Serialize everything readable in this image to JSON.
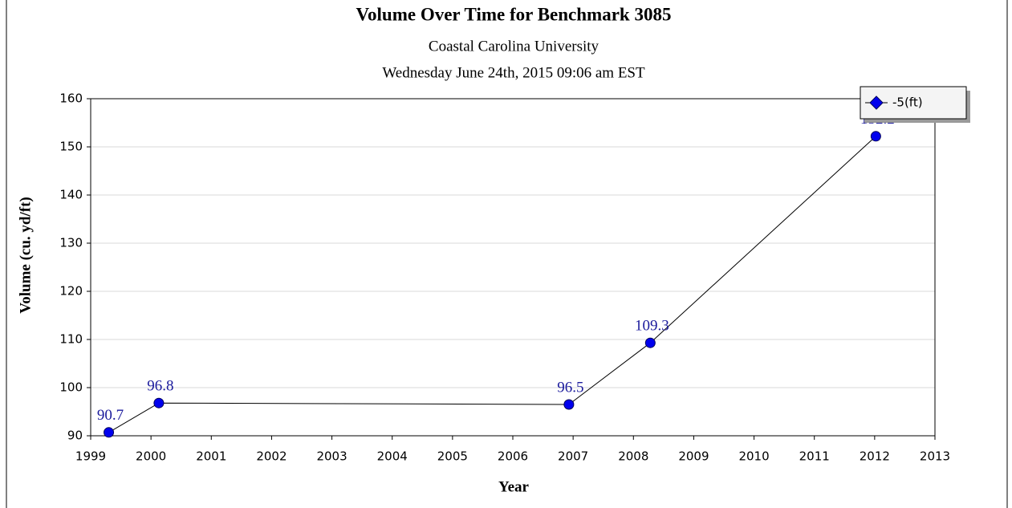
{
  "chart_data": {
    "type": "line",
    "title": "Volume Over Time for Benchmark 3085",
    "subtitle": "Coastal Carolina University",
    "timestamp": "Wednesday June 24th, 2015 09:06 am EST",
    "x_label": "Year",
    "y_label": "Volume (cu. yd/ft)",
    "x": [
      1999.3,
      2000.13,
      2006.93,
      2008.28,
      2012.02
    ],
    "series": [
      {
        "name": "-5(ft)",
        "color": "#0000ee",
        "values": [
          90.7,
          96.8,
          96.5,
          109.3,
          152.2
        ]
      }
    ],
    "xlim": [
      1999,
      2013
    ],
    "xticks": [
      1999,
      2000,
      2001,
      2002,
      2003,
      2004,
      2005,
      2006,
      2007,
      2008,
      2009,
      2010,
      2011,
      2012,
      2013
    ],
    "ylim": [
      90,
      160
    ],
    "yticks": [
      90,
      100,
      110,
      120,
      130,
      140,
      150,
      160
    ],
    "grid": true,
    "legend": "top-right"
  }
}
